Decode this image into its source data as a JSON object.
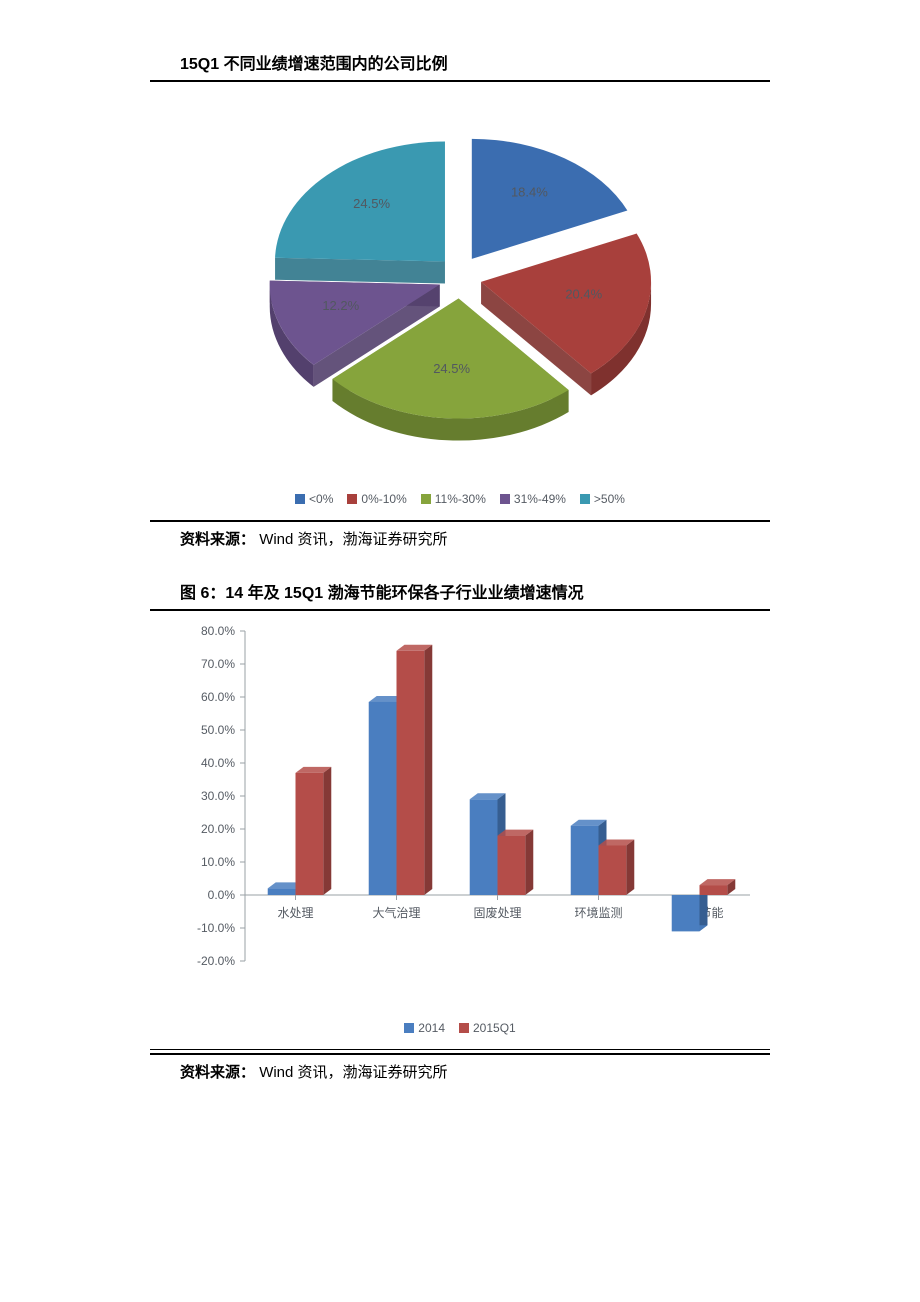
{
  "pie": {
    "title": "15Q1 不同业绩增速范围内的公司比例",
    "type": "pie-exploded-3d",
    "source_label": "资料来源：",
    "source_text": "Wind 资讯，渤海证券研究所",
    "background_color": "#ffffff",
    "label_fontsize": 13,
    "legend_fontsize": 12,
    "slices": [
      {
        "name": "<0%",
        "value": 18.4,
        "label": "18.4%",
        "color": "#3b6db0",
        "side": "#2e568b"
      },
      {
        "name": "0%-10%",
        "value": 20.4,
        "label": "20.4%",
        "color": "#a8403c",
        "side": "#7f312e"
      },
      {
        "name": "11%-30%",
        "value": 24.5,
        "label": "24.5%",
        "color": "#86a43c",
        "side": "#667d2e"
      },
      {
        "name": "31%-49%",
        "value": 12.2,
        "label": "12.2%",
        "color": "#6d548f",
        "side": "#53406d"
      },
      {
        "name": ">50%",
        "value": 24.5,
        "label": "24.5%",
        "color": "#3a99b1",
        "side": "#2d7589"
      }
    ],
    "legend": [
      {
        "swatch": "#3b6db0",
        "text": "<0%"
      },
      {
        "swatch": "#a8403c",
        "text": "0%-10%"
      },
      {
        "swatch": "#86a43c",
        "text": "11%-30%"
      },
      {
        "swatch": "#6d548f",
        "text": "31%-49%"
      },
      {
        "swatch": "#3a99b1",
        "text": ">50%"
      }
    ]
  },
  "bar": {
    "title": "图 6：14 年及 15Q1 渤海节能环保各子行业业绩增速情况",
    "type": "grouped-bar-3d",
    "source_label": "资料来源：",
    "source_text": "Wind 资讯，渤海证券研究所",
    "background_color": "#ffffff",
    "categories": [
      "水处理",
      "大气治理",
      "固废处理",
      "环境监测",
      "工业节能"
    ],
    "series": [
      {
        "name": "2014",
        "color": "#4a7ec0",
        "side": "#365e91",
        "values": [
          2.0,
          58.5,
          29.0,
          21.0,
          -11.0
        ]
      },
      {
        "name": "2015Q1",
        "color": "#b44d49",
        "side": "#853936",
        "values": [
          37.0,
          74.0,
          18.0,
          15.0,
          3.0
        ]
      }
    ],
    "ylim": [
      -20,
      80
    ],
    "ytick_step": 10,
    "ytick_format": "{v}.0%",
    "axis_fontsize": 12,
    "axis_color": "#9aa0a6",
    "tick_color": "#9aa0a6",
    "bar_group_width": 0.55,
    "legend": [
      {
        "swatch": "#4a7ec0",
        "text": "2014"
      },
      {
        "swatch": "#b44d49",
        "text": "2015Q1"
      }
    ]
  }
}
